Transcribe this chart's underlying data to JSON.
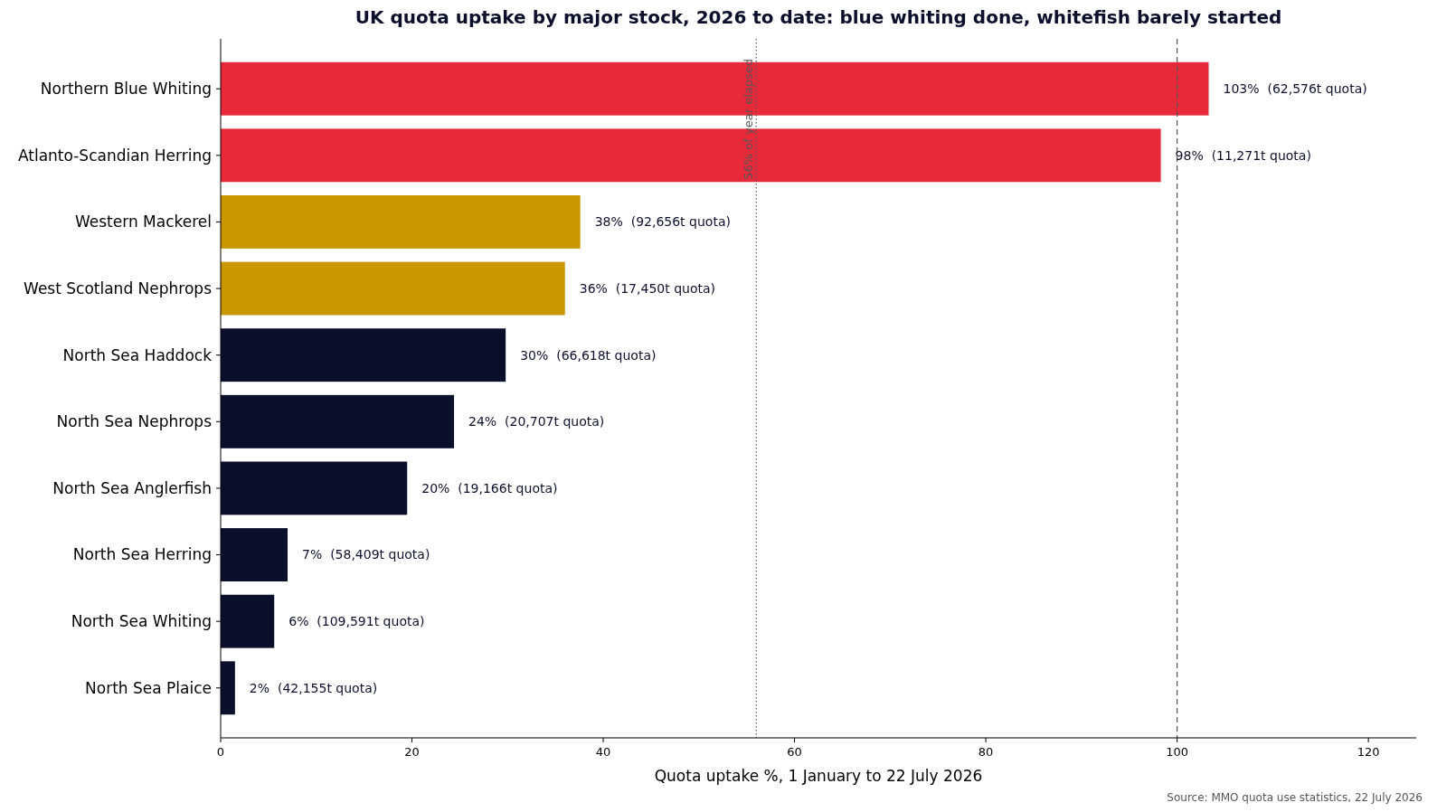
{
  "chart_data": {
    "type": "bar",
    "orientation": "horizontal",
    "title": "UK quota uptake by major stock, 2026 to date: blue whiting done, whitefish barely started",
    "xlabel": "Quota uptake %, 1 January to 22 July 2026",
    "categories": [
      "Northern Blue Whiting",
      "Atlanto-Scandian Herring",
      "Western Mackerel",
      "West Scotland Nephrops",
      "North Sea Haddock",
      "North Sea Nephrops",
      "North Sea Anglerfish",
      "North Sea Herring",
      "North Sea Whiting",
      "North Sea Plaice"
    ],
    "values": [
      103.3,
      98.3,
      37.6,
      36.0,
      29.8,
      24.4,
      19.5,
      7.0,
      5.6,
      1.5
    ],
    "colors": [
      "#e8293a",
      "#e8293a",
      "#c99700",
      "#c99700",
      "#0b0f2c",
      "#0b0f2c",
      "#0b0f2c",
      "#0b0f2c",
      "#0b0f2c",
      "#0b0f2c"
    ],
    "value_labels": [
      "103%  (62,576t quota)",
      "98%  (11,271t quota)",
      "38%  (92,656t quota)",
      "36%  (17,450t quota)",
      "30%  (66,618t quota)",
      "24%  (20,707t quota)",
      "20%  (19,166t quota)",
      "7%  (58,409t quota)",
      "6%  (109,591t quota)",
      "2%  (42,155t quota)"
    ],
    "xlim": [
      0,
      125
    ],
    "xticks": [
      0,
      20,
      40,
      60,
      80,
      100,
      120
    ],
    "ref_lines": [
      {
        "axis": "x",
        "value": 56,
        "label": "56% of year elapsed",
        "line_style": "dotted",
        "color": "#555555"
      },
      {
        "axis": "x",
        "value": 100,
        "line_style": "dashed",
        "color": "#555555"
      }
    ],
    "annotations": [
      "Source: MMO quota use statistics, 22 July 2026"
    ],
    "grid": false
  }
}
